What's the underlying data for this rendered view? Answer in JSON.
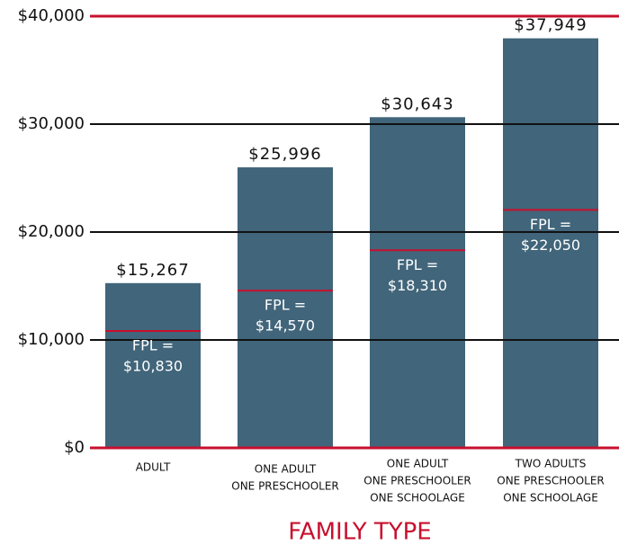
{
  "chart_data": {
    "type": "bar",
    "x_label": "FAMILY TYPE",
    "categories": [
      [
        "ADULT"
      ],
      [
        "ONE ADULT",
        "ONE PRESCHOOLER"
      ],
      [
        "ONE ADULT",
        "ONE PRESCHOOLER",
        "ONE SCHOOLAGE"
      ],
      [
        "TWO ADULTS",
        "ONE PRESCHOOLER",
        "ONE SCHOOLAGE"
      ]
    ],
    "values": [
      15267,
      25996,
      30643,
      37949
    ],
    "value_labels": [
      "$15,267",
      "$25,996",
      "$30,643",
      "$37,949"
    ],
    "color": "#41657a",
    "fpl": {
      "values": [
        10830,
        14570,
        18310,
        22050
      ],
      "value_labels": [
        [
          "FPL =",
          "$10,830"
        ],
        [
          "FPL =",
          "$14,570"
        ],
        [
          "FPL =",
          "$18,310"
        ],
        [
          "FPL =",
          "$22,050"
        ]
      ],
      "color": "#c8102e"
    },
    "ylim": [
      0,
      40000
    ],
    "yticks": [
      {
        "value": 0,
        "label": "$0"
      },
      {
        "value": 10000,
        "label": "$10,000"
      },
      {
        "value": 20000,
        "label": "$20,000"
      },
      {
        "value": 30000,
        "label": "$30,000"
      },
      {
        "value": 40000,
        "label": "$40,000"
      }
    ],
    "grid": true
  }
}
